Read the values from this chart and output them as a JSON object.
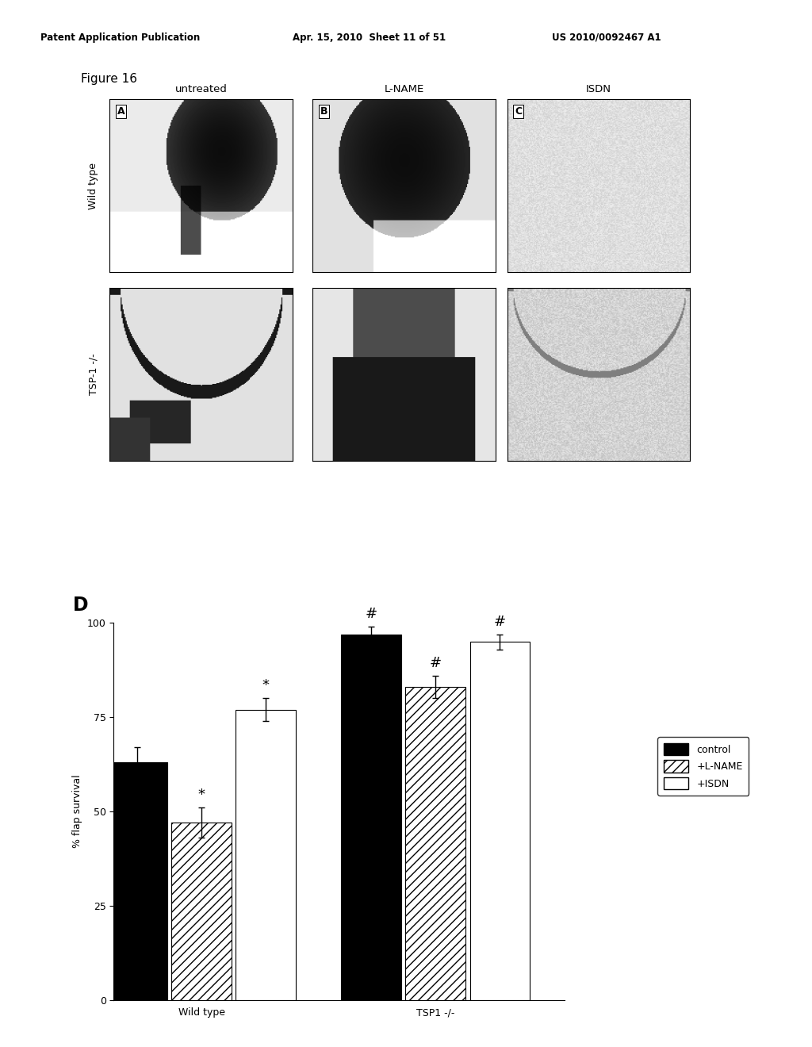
{
  "header_left": "Patent Application Publication",
  "header_mid": "Apr. 15, 2010  Sheet 11 of 51",
  "header_right": "US 2010/0092467 A1",
  "figure_label": "Figure 16",
  "col_labels": [
    "untreated",
    "L-NAME",
    "ISDN"
  ],
  "row_labels": [
    "Wild type",
    "TSP-1 -/-"
  ],
  "bar_label": "D",
  "groups": [
    "Wild type",
    "TSP1 -/-"
  ],
  "series": [
    "control",
    "+L-NAME",
    "+ISDN"
  ],
  "values": [
    [
      63,
      47,
      77
    ],
    [
      97,
      83,
      95
    ]
  ],
  "errors": [
    [
      4,
      4,
      3
    ],
    [
      2,
      3,
      2
    ]
  ],
  "ylabel": "% flap survival",
  "ylim": [
    0,
    100
  ],
  "yticks": [
    0,
    25,
    50,
    75,
    100
  ],
  "yticklabels": [
    "0",
    "25",
    "50",
    "75",
    "100"
  ],
  "background_color": "#ffffff",
  "bar_width": 0.22
}
